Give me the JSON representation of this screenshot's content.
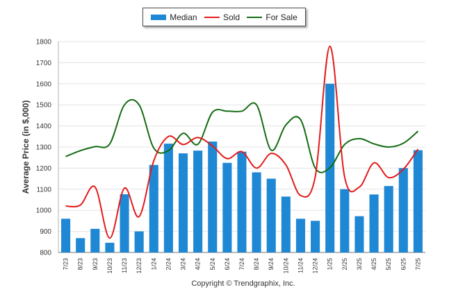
{
  "chart_data": {
    "type": "bar",
    "ylabel": "Average Price (in $,000)",
    "ylim": [
      800,
      1800
    ],
    "ytick_step": 100,
    "grid": true,
    "legend_position": "top-center",
    "categories": [
      "7/23",
      "8/23",
      "9/23",
      "10/23",
      "11/23",
      "12/23",
      "1/24",
      "2/24",
      "3/24",
      "4/24",
      "5/24",
      "6/24",
      "7/24",
      "8/24",
      "9/24",
      "10/24",
      "11/24",
      "12/24",
      "1/25",
      "2/25",
      "3/25",
      "4/25",
      "5/25",
      "6/25",
      "7/25"
    ],
    "series": [
      {
        "name": "Median",
        "kind": "bar",
        "color": "#1f88d4",
        "values": [
          960,
          868,
          912,
          846,
          1076,
          900,
          1215,
          1316,
          1270,
          1283,
          1326,
          1225,
          1278,
          1180,
          1150,
          1065,
          960,
          950,
          1600,
          1100,
          972,
          1075,
          1115,
          1200,
          1285
        ]
      },
      {
        "name": "Sold",
        "kind": "line",
        "color": "#e11b1b",
        "values": [
          1020,
          1025,
          1110,
          868,
          1105,
          970,
          1235,
          1350,
          1312,
          1345,
          1305,
          1245,
          1278,
          1200,
          1270,
          1215,
          1070,
          1160,
          1778,
          1158,
          1110,
          1225,
          1155,
          1195,
          1290
        ]
      },
      {
        "name": "For Sale",
        "kind": "line",
        "color": "#136b13",
        "values": [
          1255,
          1283,
          1302,
          1315,
          1500,
          1500,
          1295,
          1283,
          1365,
          1313,
          1465,
          1470,
          1470,
          1500,
          1285,
          1405,
          1430,
          1200,
          1202,
          1312,
          1340,
          1315,
          1300,
          1318,
          1375
        ]
      }
    ]
  },
  "copyright": "Copyright © Trendgraphix, Inc."
}
